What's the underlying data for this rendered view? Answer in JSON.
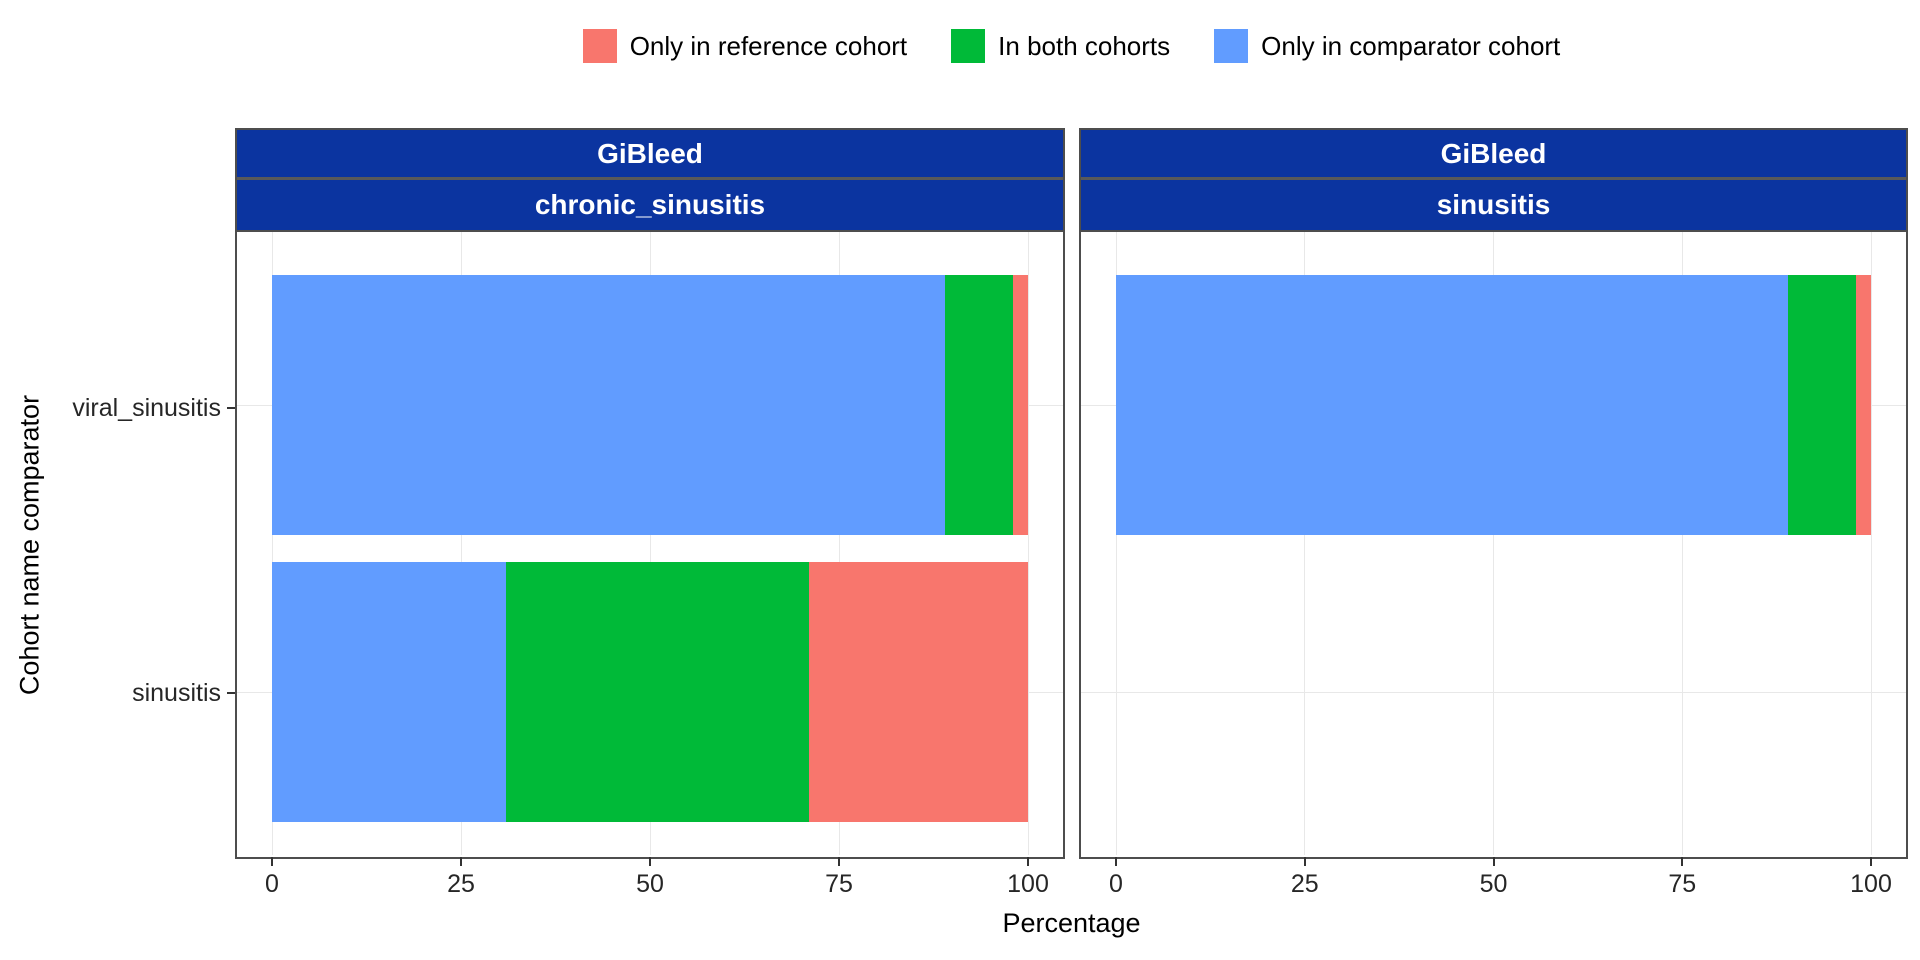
{
  "legend": {
    "items": [
      {
        "label": "Only in reference cohort",
        "color": "#F8766D"
      },
      {
        "label": "In both cohorts",
        "color": "#00BA38"
      },
      {
        "label": "Only in comparator cohort",
        "color": "#619CFF"
      }
    ]
  },
  "axes": {
    "y_title": "Cohort name comparator",
    "x_title": "Percentage",
    "y_categories": [
      "viral_sinusitis",
      "sinusitis"
    ]
  },
  "colors": {
    "strip_bg": "#0B34A0",
    "strip_text": "#FFFFFF",
    "panel_border": "#4D4D4D",
    "grid": "#E8E8E8",
    "only_in_reference": "#F8766D",
    "in_both": "#00BA38",
    "only_in_comparator": "#619CFF"
  },
  "chart_data": {
    "type": "bar",
    "orientation": "horizontal",
    "stacked": true,
    "xlabel": "Percentage",
    "ylabel": "Cohort name comparator",
    "xlim": [
      0,
      100
    ],
    "x_ticks": [
      0,
      25,
      50,
      75,
      100
    ],
    "grid": true,
    "legend_position": "top",
    "series_names": [
      "Only in reference cohort",
      "In both cohorts",
      "Only in comparator cohort"
    ],
    "facets": [
      {
        "strip_top": "GiBleed",
        "strip_bottom": "chronic_sinusitis",
        "rows": [
          {
            "category": "viral_sinusitis",
            "only_in_comparator": 89,
            "in_both": 9,
            "only_in_reference": 2
          },
          {
            "category": "sinusitis",
            "only_in_comparator": 31,
            "in_both": 40,
            "only_in_reference": 29
          }
        ]
      },
      {
        "strip_top": "GiBleed",
        "strip_bottom": "sinusitis",
        "rows": [
          {
            "category": "viral_sinusitis",
            "only_in_comparator": 89,
            "in_both": 9,
            "only_in_reference": 2
          },
          {
            "category": "sinusitis",
            "only_in_comparator": null,
            "in_both": null,
            "only_in_reference": null
          }
        ]
      }
    ]
  }
}
